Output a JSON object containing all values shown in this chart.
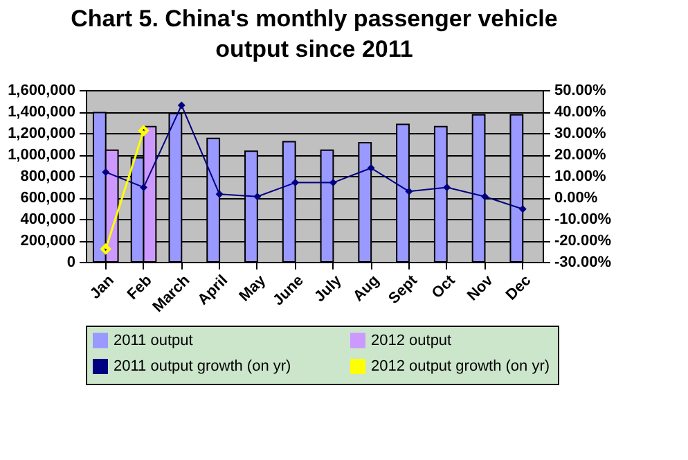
{
  "chart_data": {
    "type": "bar",
    "title": "Chart 5. China's monthly passenger vehicle output since 2011",
    "categories": [
      "Jan",
      "Feb",
      "March",
      "April",
      "May",
      "June",
      "July",
      "Aug",
      "Sept",
      "Oct",
      "Nov",
      "Dec"
    ],
    "series": [
      {
        "name": "2011 output",
        "color": "#9999ff",
        "values": [
          1390000,
          970000,
          1380000,
          1150000,
          1030000,
          1120000,
          1040000,
          1110000,
          1280000,
          1260000,
          1370000,
          1370000
        ]
      },
      {
        "name": "2012 output",
        "color": "#cc99ff",
        "values": [
          1040000,
          1260000,
          null,
          null,
          null,
          null,
          null,
          null,
          null,
          null,
          null,
          null
        ]
      },
      {
        "name": "2011 output growth (on yr)",
        "type": "line",
        "axis": "y2",
        "color": "#000080",
        "values": [
          11.8,
          4.7,
          42.9,
          1.5,
          0.4,
          6.9,
          6.9,
          13.7,
          2.8,
          4.7,
          0.4,
          -5.4
        ]
      },
      {
        "name": "2012 output growth (on yr)",
        "type": "line",
        "axis": "y2",
        "color": "#ffff00",
        "values": [
          -24.0,
          31.1,
          null,
          null,
          null,
          null,
          null,
          null,
          null,
          null,
          null,
          null
        ]
      }
    ],
    "ylim": [
      0,
      1600000
    ],
    "yticks": [
      {
        "value": 0,
        "label": "0"
      },
      {
        "value": 200000,
        "label": "200,000"
      },
      {
        "value": 400000,
        "label": "400,000"
      },
      {
        "value": 600000,
        "label": "600,000"
      },
      {
        "value": 800000,
        "label": "800,000"
      },
      {
        "value": 1000000,
        "label": "1,000,000"
      },
      {
        "value": 1200000,
        "label": "1,200,000"
      },
      {
        "value": 1400000,
        "label": "1,400,000"
      },
      {
        "value": 1600000,
        "label": "1,600,000"
      }
    ],
    "y2lim": [
      -30,
      50
    ],
    "y2ticks": [
      {
        "value": -30,
        "label": "-30.00%"
      },
      {
        "value": -20,
        "label": "-20.00%"
      },
      {
        "value": -10,
        "label": "-10.00%"
      },
      {
        "value": 0,
        "label": "0.00%"
      },
      {
        "value": 10,
        "label": "10.00%"
      },
      {
        "value": 20,
        "label": "20.00%"
      },
      {
        "value": 30,
        "label": "30.00%"
      },
      {
        "value": 40,
        "label": "40.00%"
      },
      {
        "value": 50,
        "label": "50.00%"
      }
    ],
    "grid": "y",
    "legend": "bottom",
    "marker": "diamond",
    "line_style": "solid"
  }
}
